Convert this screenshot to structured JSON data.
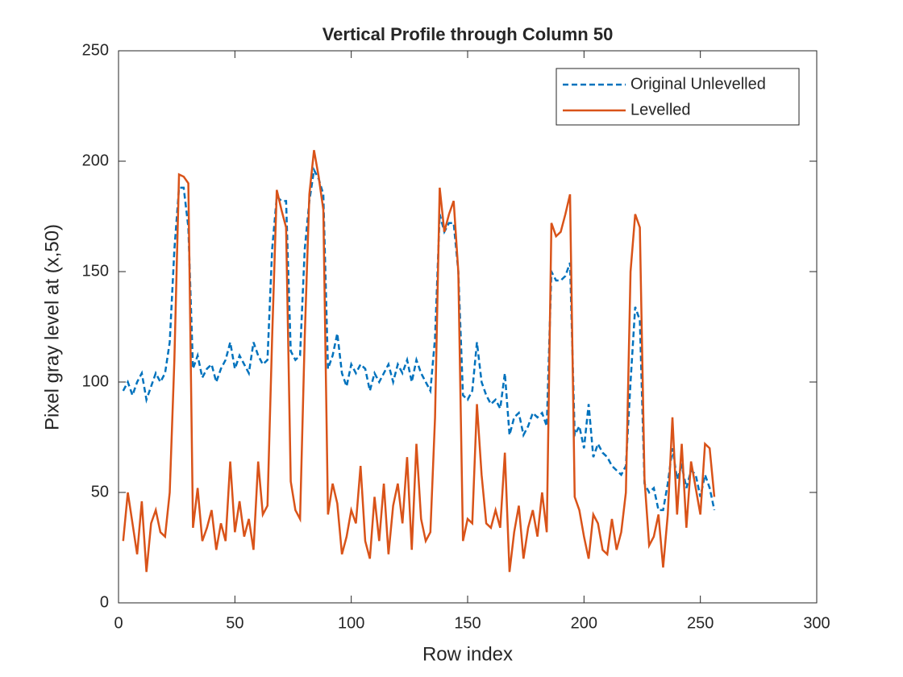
{
  "chart_data": {
    "type": "line",
    "title": "Vertical Profile through Column 50",
    "xlabel": "Row index",
    "ylabel": "Pixel gray level at (x,50)",
    "xlim": [
      0,
      300
    ],
    "xticks": [
      0,
      50,
      100,
      150,
      200,
      250,
      300
    ],
    "ylim": [
      0,
      250
    ],
    "yticks": [
      0,
      50,
      100,
      150,
      200,
      250
    ],
    "legend": "top-right",
    "x": [
      2,
      4,
      6,
      8,
      10,
      12,
      14,
      16,
      18,
      20,
      22,
      24,
      26,
      28,
      30,
      32,
      34,
      36,
      38,
      40,
      42,
      44,
      46,
      48,
      50,
      52,
      54,
      56,
      58,
      60,
      62,
      64,
      66,
      68,
      70,
      72,
      74,
      76,
      78,
      80,
      82,
      84,
      86,
      88,
      90,
      92,
      94,
      96,
      98,
      100,
      102,
      104,
      106,
      108,
      110,
      112,
      114,
      116,
      118,
      120,
      122,
      124,
      126,
      128,
      130,
      132,
      134,
      136,
      138,
      140,
      142,
      144,
      146,
      148,
      150,
      152,
      154,
      156,
      158,
      160,
      162,
      164,
      166,
      168,
      170,
      172,
      174,
      176,
      178,
      180,
      182,
      184,
      186,
      188,
      190,
      192,
      194,
      196,
      198,
      200,
      202,
      204,
      206,
      208,
      210,
      212,
      214,
      216,
      218,
      220,
      222,
      224,
      226,
      228,
      230,
      232,
      234,
      236,
      238,
      240,
      242,
      244,
      246,
      248,
      250,
      252,
      254,
      256
    ],
    "series": [
      {
        "name": "Original Unlevelled",
        "color": "#0072BD",
        "line_style": "dashed",
        "values": [
          96,
          100,
          94,
          100,
          104,
          92,
          98,
          104,
          100,
          104,
          118,
          160,
          188,
          188,
          170,
          106,
          112,
          102,
          106,
          108,
          100,
          106,
          110,
          118,
          106,
          112,
          108,
          104,
          118,
          112,
          108,
          110,
          160,
          184,
          182,
          182,
          114,
          110,
          112,
          160,
          182,
          196,
          192,
          185,
          106,
          112,
          122,
          104,
          98,
          108,
          104,
          108,
          106,
          96,
          104,
          100,
          104,
          108,
          100,
          108,
          104,
          110,
          100,
          110,
          104,
          100,
          96,
          120,
          176,
          168,
          172,
          172,
          150,
          94,
          92,
          96,
          118,
          100,
          94,
          90,
          92,
          88,
          104,
          76,
          84,
          86,
          76,
          80,
          86,
          84,
          86,
          80,
          150,
          146,
          146,
          148,
          154,
          76,
          80,
          70,
          90,
          66,
          72,
          68,
          66,
          62,
          60,
          58,
          62,
          100,
          134,
          128,
          54,
          50,
          52,
          42,
          42,
          54,
          70,
          56,
          62,
          52,
          60,
          58,
          48,
          58,
          52,
          42
        ]
      },
      {
        "name": "Levelled",
        "color": "#D95319",
        "line_style": "solid",
        "values": [
          28,
          50,
          36,
          22,
          46,
          14,
          36,
          42,
          32,
          30,
          50,
          110,
          194,
          193,
          190,
          34,
          52,
          28,
          34,
          42,
          24,
          36,
          28,
          64,
          32,
          46,
          30,
          38,
          24,
          64,
          40,
          44,
          120,
          187,
          178,
          170,
          55,
          42,
          38,
          120,
          185,
          205,
          193,
          178,
          40,
          54,
          45,
          22,
          30,
          42,
          36,
          62,
          28,
          20,
          48,
          28,
          54,
          22,
          44,
          54,
          36,
          66,
          24,
          72,
          38,
          28,
          32,
          84,
          188,
          168,
          176,
          182,
          150,
          28,
          38,
          36,
          90,
          58,
          36,
          34,
          42,
          34,
          68,
          14,
          32,
          44,
          20,
          34,
          42,
          30,
          50,
          32,
          172,
          166,
          168,
          176,
          185,
          48,
          42,
          30,
          20,
          40,
          36,
          24,
          22,
          38,
          24,
          32,
          50,
          150,
          176,
          170,
          56,
          26,
          30,
          40,
          16,
          40,
          84,
          40,
          72,
          34,
          64,
          52,
          40,
          72,
          70,
          48
        ]
      }
    ]
  }
}
